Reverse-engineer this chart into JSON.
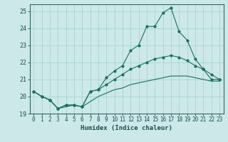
{
  "xlabel": "Humidex (Indice chaleur)",
  "ylabel": "",
  "background_color": "#cce8e8",
  "grid_color": "#aad4d4",
  "line_color": "#1a7060",
  "xlim": [
    -0.5,
    23.5
  ],
  "ylim": [
    19,
    25.4
  ],
  "yticks": [
    19,
    20,
    21,
    22,
    23,
    24,
    25
  ],
  "xticks": [
    0,
    1,
    2,
    3,
    4,
    5,
    6,
    7,
    8,
    9,
    10,
    11,
    12,
    13,
    14,
    15,
    16,
    17,
    18,
    19,
    20,
    21,
    22,
    23
  ],
  "line1_x": [
    0,
    1,
    2,
    3,
    4,
    5,
    6,
    7,
    8,
    9,
    10,
    11,
    12,
    13,
    14,
    15,
    16,
    17,
    18,
    19,
    20,
    21,
    22,
    23
  ],
  "line1_y": [
    20.3,
    20.0,
    19.8,
    19.3,
    19.5,
    19.5,
    19.4,
    20.3,
    20.4,
    21.1,
    21.5,
    21.8,
    22.7,
    23.0,
    24.1,
    24.1,
    24.9,
    25.2,
    23.8,
    23.3,
    22.2,
    21.6,
    21.0,
    21.0
  ],
  "line2_x": [
    0,
    1,
    2,
    3,
    4,
    5,
    6,
    7,
    8,
    9,
    10,
    11,
    12,
    13,
    14,
    15,
    16,
    17,
    18,
    19,
    20,
    21,
    22,
    23
  ],
  "line2_y": [
    20.3,
    20.0,
    19.8,
    19.3,
    19.5,
    19.5,
    19.4,
    20.3,
    20.4,
    20.7,
    21.0,
    21.3,
    21.6,
    21.8,
    22.0,
    22.2,
    22.3,
    22.4,
    22.3,
    22.1,
    21.8,
    21.6,
    21.3,
    21.0
  ],
  "line3_x": [
    0,
    1,
    2,
    3,
    4,
    5,
    6,
    7,
    8,
    9,
    10,
    11,
    12,
    13,
    14,
    15,
    16,
    17,
    18,
    19,
    20,
    21,
    22,
    23
  ],
  "line3_y": [
    20.3,
    20.0,
    19.8,
    19.3,
    19.4,
    19.5,
    19.4,
    19.7,
    20.0,
    20.2,
    20.4,
    20.5,
    20.7,
    20.8,
    20.9,
    21.0,
    21.1,
    21.2,
    21.2,
    21.2,
    21.1,
    21.0,
    20.9,
    20.9
  ]
}
